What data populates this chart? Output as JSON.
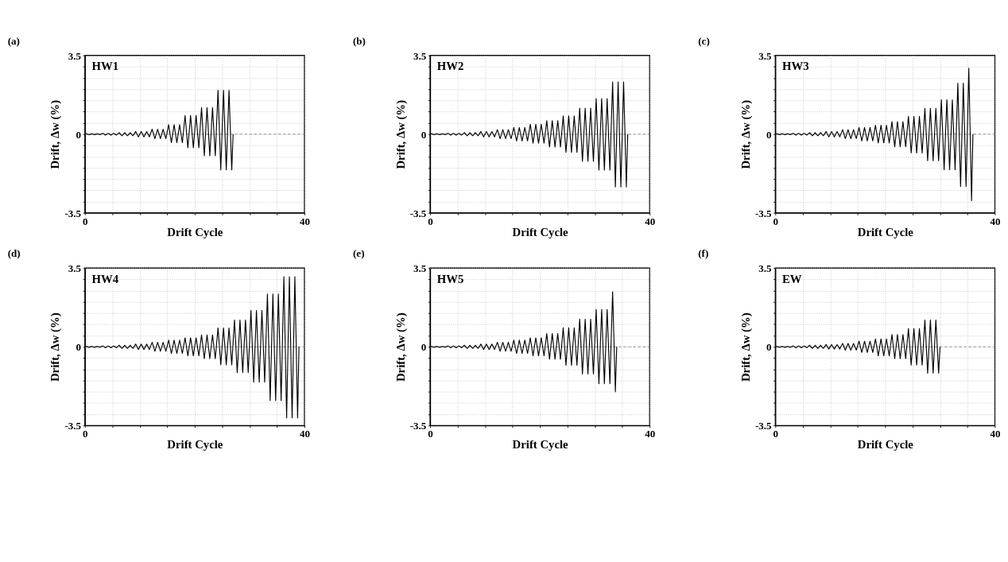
{
  "chart_data": [
    {
      "type": "line",
      "title": "(a)",
      "xlabel": "Drift Cycle",
      "ylabel": "Drift, Δw (%)",
      "annotations": [
        "HW1"
      ],
      "xlim": [
        0,
        40
      ],
      "ylim": [
        -3.5,
        3.5
      ],
      "xticks": [
        0,
        {
          "value": 5,
          "label": null
        },
        {
          "value": 10,
          "label": null
        },
        {
          "value": 15,
          "label": null
        },
        {
          "value": 20,
          "label": null
        },
        {
          "value": 25,
          "label": null
        },
        {
          "value": 30,
          "label": null
        },
        {
          "value": 35,
          "label": null
        },
        40
      ],
      "yticks": [
        -3.5,
        {
          "value": -3,
          "label": null
        },
        {
          "value": -2.5,
          "label": null
        },
        {
          "value": -2,
          "label": null
        },
        {
          "value": -1.5,
          "label": null
        },
        {
          "value": -1,
          "label": null
        },
        {
          "value": -0.5,
          "label": null
        },
        0,
        {
          "value": 0.5,
          "label": null
        },
        {
          "value": 1,
          "label": null
        },
        {
          "value": 1.5,
          "label": null
        },
        {
          "value": 2,
          "label": null
        },
        {
          "value": 2.5,
          "label": null
        },
        {
          "value": 3,
          "label": null
        },
        3.5
      ],
      "grid": true,
      "ref_lines": [
        {
          "axis": "y",
          "value": 0,
          "line_style": "dashed",
          "color": "#888888"
        }
      ],
      "series": [
        {
          "color": "#000000",
          "x": [
            0,
            0.25,
            0.75,
            1.25,
            1.75,
            2.25,
            2.75,
            3.25,
            3.75,
            4.25,
            4.75,
            5.25,
            5.75,
            6.25,
            6.75,
            7.25,
            7.75,
            8.25,
            8.75,
            9.25,
            9.75,
            10.25,
            10.75,
            11.25,
            11.75,
            12.25,
            12.75,
            13.25,
            13.75,
            14.25,
            14.75,
            15.25,
            15.75,
            16.25,
            16.75,
            17.25,
            17.75,
            18.25,
            18.75,
            19.25,
            19.75,
            20.25,
            20.75,
            21.25,
            21.75,
            22.25,
            22.75,
            23.25,
            23.75,
            24.25,
            24.75,
            25.25,
            25.75,
            26.25,
            26.75,
            27
          ],
          "values": [
            0,
            0.02,
            -0.02,
            0.02,
            -0.02,
            0.02,
            -0.02,
            0.04,
            -0.04,
            0.04,
            -0.04,
            0.04,
            -0.04,
            0.07,
            -0.07,
            0.07,
            -0.07,
            0.07,
            -0.07,
            0.12,
            -0.12,
            0.12,
            -0.12,
            0.12,
            -0.12,
            0.22,
            -0.2,
            0.22,
            -0.2,
            0.22,
            -0.2,
            0.42,
            -0.38,
            0.42,
            -0.38,
            0.42,
            -0.38,
            0.83,
            -0.61,
            0.83,
            -0.61,
            0.83,
            -0.61,
            1.18,
            -0.96,
            1.18,
            -0.96,
            1.18,
            -0.96,
            1.95,
            -1.59,
            1.95,
            -1.59,
            1.95,
            -1.59,
            0
          ]
        }
      ]
    },
    {
      "type": "line",
      "title": "(b)",
      "xlabel": "Drift Cycle",
      "ylabel": "Drift, Δw (%)",
      "annotations": [
        "HW2"
      ],
      "xlim": [
        0,
        40
      ],
      "ylim": [
        -3.5,
        3.5
      ],
      "xticks": [
        0,
        {
          "value": 5,
          "label": null
        },
        {
          "value": 10,
          "label": null
        },
        {
          "value": 15,
          "label": null
        },
        {
          "value": 20,
          "label": null
        },
        {
          "value": 25,
          "label": null
        },
        {
          "value": 30,
          "label": null
        },
        {
          "value": 35,
          "label": null
        },
        40
      ],
      "yticks": [
        -3.5,
        {
          "value": -3,
          "label": null
        },
        {
          "value": -2.5,
          "label": null
        },
        {
          "value": -2,
          "label": null
        },
        {
          "value": -1.5,
          "label": null
        },
        {
          "value": -1,
          "label": null
        },
        {
          "value": -0.5,
          "label": null
        },
        0,
        {
          "value": 0.5,
          "label": null
        },
        {
          "value": 1,
          "label": null
        },
        {
          "value": 1.5,
          "label": null
        },
        {
          "value": 2,
          "label": null
        },
        {
          "value": 2.5,
          "label": null
        },
        {
          "value": 3,
          "label": null
        },
        3.5
      ],
      "grid": true,
      "ref_lines": [
        {
          "axis": "y",
          "value": 0,
          "line_style": "dashed",
          "color": "#888888"
        }
      ],
      "series": [
        {
          "color": "#000000",
          "x": [
            0,
            0.25,
            0.75,
            1.25,
            1.75,
            2.25,
            2.75,
            3.25,
            3.75,
            4.25,
            4.75,
            5.25,
            5.75,
            6.25,
            6.75,
            7.25,
            7.75,
            8.25,
            8.75,
            9.25,
            9.75,
            10.25,
            10.75,
            11.25,
            11.75,
            12.25,
            12.75,
            13.25,
            13.75,
            14.25,
            14.75,
            15.25,
            15.75,
            16.25,
            16.75,
            17.25,
            17.75,
            18.25,
            18.75,
            19.25,
            19.75,
            20.25,
            20.75,
            21.25,
            21.75,
            22.25,
            22.75,
            23.25,
            23.75,
            24.25,
            24.75,
            25.25,
            25.75,
            26.25,
            26.75,
            27.25,
            27.75,
            28.25,
            28.75,
            29.25,
            29.75,
            30.25,
            30.75,
            31.25,
            31.75,
            32.25,
            32.75,
            33.25,
            33.75,
            34.25,
            34.75,
            35.25,
            35.75,
            36
          ],
          "values": [
            0,
            0.02,
            -0.02,
            0.02,
            -0.02,
            0.02,
            -0.02,
            0.04,
            -0.04,
            0.04,
            -0.04,
            0.04,
            -0.04,
            0.07,
            -0.07,
            0.07,
            -0.07,
            0.07,
            -0.07,
            0.12,
            -0.12,
            0.12,
            -0.12,
            0.12,
            -0.12,
            0.2,
            -0.2,
            0.2,
            -0.2,
            0.2,
            -0.2,
            0.3,
            -0.3,
            0.3,
            -0.3,
            0.3,
            -0.3,
            0.44,
            -0.4,
            0.44,
            -0.4,
            0.44,
            -0.4,
            0.6,
            -0.57,
            0.6,
            -0.57,
            0.6,
            -0.57,
            0.81,
            -0.81,
            0.81,
            -0.81,
            0.81,
            -0.81,
            1.16,
            -1.21,
            1.16,
            -1.21,
            1.16,
            -1.21,
            1.58,
            -1.6,
            1.58,
            -1.6,
            1.58,
            -1.6,
            2.32,
            -2.35,
            2.32,
            -2.35,
            2.32,
            -2.35,
            0
          ]
        }
      ]
    },
    {
      "type": "line",
      "title": "(c)",
      "xlabel": "Drift Cycle",
      "ylabel": "Drift, Δw (%)",
      "annotations": [
        "HW3"
      ],
      "xlim": [
        0,
        40
      ],
      "ylim": [
        -3.5,
        3.5
      ],
      "xticks": [
        0,
        {
          "value": 5,
          "label": null
        },
        {
          "value": 10,
          "label": null
        },
        {
          "value": 15,
          "label": null
        },
        {
          "value": 20,
          "label": null
        },
        {
          "value": 25,
          "label": null
        },
        {
          "value": 30,
          "label": null
        },
        {
          "value": 35,
          "label": null
        },
        40
      ],
      "yticks": [
        -3.5,
        {
          "value": -3,
          "label": null
        },
        {
          "value": -2.5,
          "label": null
        },
        {
          "value": -2,
          "label": null
        },
        {
          "value": -1.5,
          "label": null
        },
        {
          "value": -1,
          "label": null
        },
        {
          "value": -0.5,
          "label": null
        },
        0,
        {
          "value": 0.5,
          "label": null
        },
        {
          "value": 1,
          "label": null
        },
        {
          "value": 1.5,
          "label": null
        },
        {
          "value": 2,
          "label": null
        },
        {
          "value": 2.5,
          "label": null
        },
        {
          "value": 3,
          "label": null
        },
        3.5
      ],
      "grid": true,
      "ref_lines": [
        {
          "axis": "y",
          "value": 0,
          "line_style": "dashed",
          "color": "#888888"
        }
      ],
      "series": [
        {
          "color": "#000000",
          "x": [
            0,
            0.25,
            0.75,
            1.25,
            1.75,
            2.25,
            2.75,
            3.25,
            3.75,
            4.25,
            4.75,
            5.25,
            5.75,
            6.25,
            6.75,
            7.25,
            7.75,
            8.25,
            8.75,
            9.25,
            9.75,
            10.25,
            10.75,
            11.25,
            11.75,
            12.25,
            12.75,
            13.25,
            13.75,
            14.25,
            14.75,
            15.25,
            15.75,
            16.25,
            16.75,
            17.25,
            17.75,
            18.25,
            18.75,
            19.25,
            19.75,
            20.25,
            20.75,
            21.25,
            21.75,
            22.25,
            22.75,
            23.25,
            23.75,
            24.25,
            24.75,
            25.25,
            25.75,
            26.25,
            26.75,
            27.25,
            27.75,
            28.25,
            28.75,
            29.25,
            29.75,
            30.25,
            30.75,
            31.25,
            31.75,
            32.25,
            32.75,
            33.25,
            33.75,
            34.25,
            34.75,
            35.25,
            35.75,
            36
          ],
          "values": [
            0,
            0.02,
            -0.02,
            0.02,
            -0.02,
            0.02,
            -0.02,
            0.04,
            -0.04,
            0.04,
            -0.04,
            0.04,
            -0.04,
            0.07,
            -0.07,
            0.07,
            -0.07,
            0.07,
            -0.07,
            0.12,
            -0.12,
            0.12,
            -0.12,
            0.12,
            -0.12,
            0.2,
            -0.2,
            0.2,
            -0.2,
            0.2,
            -0.2,
            0.3,
            -0.3,
            0.3,
            -0.3,
            0.3,
            -0.3,
            0.4,
            -0.39,
            0.4,
            -0.39,
            0.4,
            -0.39,
            0.56,
            -0.56,
            0.56,
            -0.56,
            0.56,
            -0.56,
            0.79,
            -0.84,
            0.79,
            -0.84,
            0.79,
            -0.84,
            1.15,
            -1.18,
            1.15,
            -1.18,
            1.15,
            -1.18,
            1.53,
            -1.58,
            1.53,
            -1.58,
            1.53,
            -1.58,
            2.27,
            -2.33,
            2.27,
            -2.33,
            2.93,
            -2.96,
            0
          ]
        }
      ]
    },
    {
      "type": "line",
      "title": "(d)",
      "xlabel": "Drift Cycle",
      "ylabel": "Drift, Δw (%)",
      "annotations": [
        "HW4"
      ],
      "xlim": [
        0,
        40
      ],
      "ylim": [
        -3.5,
        3.5
      ],
      "xticks": [
        0,
        {
          "value": 5,
          "label": null
        },
        {
          "value": 10,
          "label": null
        },
        {
          "value": 15,
          "label": null
        },
        {
          "value": 20,
          "label": null
        },
        {
          "value": 25,
          "label": null
        },
        {
          "value": 30,
          "label": null
        },
        {
          "value": 35,
          "label": null
        },
        40
      ],
      "yticks": [
        -3.5,
        {
          "value": -3,
          "label": null
        },
        {
          "value": -2.5,
          "label": null
        },
        {
          "value": -2,
          "label": null
        },
        {
          "value": -1.5,
          "label": null
        },
        {
          "value": -1,
          "label": null
        },
        {
          "value": -0.5,
          "label": null
        },
        0,
        {
          "value": 0.5,
          "label": null
        },
        {
          "value": 1,
          "label": null
        },
        {
          "value": 1.5,
          "label": null
        },
        {
          "value": 2,
          "label": null
        },
        {
          "value": 2.5,
          "label": null
        },
        {
          "value": 3,
          "label": null
        },
        3.5
      ],
      "grid": true,
      "ref_lines": [
        {
          "axis": "y",
          "value": 0,
          "line_style": "dashed",
          "color": "#888888"
        }
      ],
      "series": [
        {
          "color": "#000000",
          "x": [
            0,
            0.25,
            0.75,
            1.25,
            1.75,
            2.25,
            2.75,
            3.25,
            3.75,
            4.25,
            4.75,
            5.25,
            5.75,
            6.25,
            6.75,
            7.25,
            7.75,
            8.25,
            8.75,
            9.25,
            9.75,
            10.25,
            10.75,
            11.25,
            11.75,
            12.25,
            12.75,
            13.25,
            13.75,
            14.25,
            14.75,
            15.25,
            15.75,
            16.25,
            16.75,
            17.25,
            17.75,
            18.25,
            18.75,
            19.25,
            19.75,
            20.25,
            20.75,
            21.25,
            21.75,
            22.25,
            22.75,
            23.25,
            23.75,
            24.25,
            24.75,
            25.25,
            25.75,
            26.25,
            26.75,
            27.25,
            27.75,
            28.25,
            28.75,
            29.25,
            29.75,
            30.25,
            30.75,
            31.25,
            31.75,
            32.25,
            32.75,
            33.25,
            33.75,
            34.25,
            34.75,
            35.25,
            35.75,
            36.25,
            36.75,
            37.25,
            37.75,
            38.25,
            38.75,
            39
          ],
          "values": [
            0,
            0.02,
            -0.02,
            0.02,
            -0.02,
            0.02,
            -0.02,
            0.04,
            -0.04,
            0.04,
            -0.04,
            0.04,
            -0.04,
            0.07,
            -0.07,
            0.07,
            -0.07,
            0.07,
            -0.07,
            0.12,
            -0.12,
            0.12,
            -0.12,
            0.12,
            -0.12,
            0.2,
            -0.2,
            0.2,
            -0.2,
            0.2,
            -0.2,
            0.3,
            -0.3,
            0.3,
            -0.3,
            0.3,
            -0.3,
            0.4,
            -0.4,
            0.4,
            -0.4,
            0.4,
            -0.4,
            0.53,
            -0.53,
            0.53,
            -0.53,
            0.53,
            -0.53,
            0.84,
            -0.8,
            0.84,
            -0.8,
            0.84,
            -0.8,
            1.19,
            -1.15,
            1.19,
            -1.15,
            1.19,
            -1.15,
            1.62,
            -1.57,
            1.62,
            -1.57,
            1.62,
            -1.57,
            2.35,
            -2.39,
            2.35,
            -2.39,
            2.35,
            -2.39,
            3.12,
            -3.16,
            3.12,
            -3.16,
            3.12,
            -3.16,
            0
          ]
        }
      ]
    },
    {
      "type": "line",
      "title": "(e)",
      "xlabel": "Drift Cycle",
      "ylabel": "Drift, Δw (%)",
      "annotations": [
        "HW5"
      ],
      "xlim": [
        0,
        40
      ],
      "ylim": [
        -3.5,
        3.5
      ],
      "xticks": [
        0,
        {
          "value": 5,
          "label": null
        },
        {
          "value": 10,
          "label": null
        },
        {
          "value": 15,
          "label": null
        },
        {
          "value": 20,
          "label": null
        },
        {
          "value": 25,
          "label": null
        },
        {
          "value": 30,
          "label": null
        },
        {
          "value": 35,
          "label": null
        },
        40
      ],
      "yticks": [
        -3.5,
        {
          "value": -3,
          "label": null
        },
        {
          "value": -2.5,
          "label": null
        },
        {
          "value": -2,
          "label": null
        },
        {
          "value": -1.5,
          "label": null
        },
        {
          "value": -1,
          "label": null
        },
        {
          "value": -0.5,
          "label": null
        },
        0,
        {
          "value": 0.5,
          "label": null
        },
        {
          "value": 1,
          "label": null
        },
        {
          "value": 1.5,
          "label": null
        },
        {
          "value": 2,
          "label": null
        },
        {
          "value": 2.5,
          "label": null
        },
        {
          "value": 3,
          "label": null
        },
        3.5
      ],
      "grid": true,
      "ref_lines": [
        {
          "axis": "y",
          "value": 0,
          "line_style": "dashed",
          "color": "#888888"
        }
      ],
      "series": [
        {
          "color": "#000000",
          "x": [
            0,
            0.25,
            0.75,
            1.25,
            1.75,
            2.25,
            2.75,
            3.25,
            3.75,
            4.25,
            4.75,
            5.25,
            5.75,
            6.25,
            6.75,
            7.25,
            7.75,
            8.25,
            8.75,
            9.25,
            9.75,
            10.25,
            10.75,
            11.25,
            11.75,
            12.25,
            12.75,
            13.25,
            13.75,
            14.25,
            14.75,
            15.25,
            15.75,
            16.25,
            16.75,
            17.25,
            17.75,
            18.25,
            18.75,
            19.25,
            19.75,
            20.25,
            20.75,
            21.25,
            21.75,
            22.25,
            22.75,
            23.25,
            23.75,
            24.25,
            24.75,
            25.25,
            25.75,
            26.25,
            26.75,
            27.25,
            27.75,
            28.25,
            28.75,
            29.25,
            29.75,
            30.25,
            30.75,
            31.25,
            31.75,
            32.25,
            32.75,
            33.25,
            33.75,
            34
          ],
          "values": [
            0,
            0.02,
            -0.02,
            0.02,
            -0.02,
            0.02,
            -0.02,
            0.04,
            -0.04,
            0.04,
            -0.04,
            0.04,
            -0.04,
            0.07,
            -0.07,
            0.07,
            -0.07,
            0.07,
            -0.07,
            0.12,
            -0.12,
            0.12,
            -0.12,
            0.12,
            -0.12,
            0.2,
            -0.2,
            0.2,
            -0.2,
            0.2,
            -0.2,
            0.3,
            -0.3,
            0.3,
            -0.3,
            0.3,
            -0.3,
            0.4,
            -0.4,
            0.4,
            -0.4,
            0.4,
            -0.4,
            0.59,
            -0.55,
            0.59,
            -0.55,
            0.59,
            -0.55,
            0.85,
            -0.82,
            0.85,
            -0.82,
            0.85,
            -0.82,
            1.23,
            -1.21,
            1.23,
            -1.21,
            1.23,
            -1.21,
            1.66,
            -1.64,
            1.66,
            -1.64,
            1.66,
            -1.64,
            2.45,
            -2.0,
            0
          ]
        }
      ]
    },
    {
      "type": "line",
      "title": "(f)",
      "xlabel": "Drift Cycle",
      "ylabel": "Drift, Δw (%)",
      "annotations": [
        "EW"
      ],
      "xlim": [
        0,
        40
      ],
      "ylim": [
        -3.5,
        3.5
      ],
      "xticks": [
        0,
        {
          "value": 5,
          "label": null
        },
        {
          "value": 10,
          "label": null
        },
        {
          "value": 15,
          "label": null
        },
        {
          "value": 20,
          "label": null
        },
        {
          "value": 25,
          "label": null
        },
        {
          "value": 30,
          "label": null
        },
        {
          "value": 35,
          "label": null
        },
        40
      ],
      "yticks": [
        -3.5,
        {
          "value": -3,
          "label": null
        },
        {
          "value": -2.5,
          "label": null
        },
        {
          "value": -2,
          "label": null
        },
        {
          "value": -1.5,
          "label": null
        },
        {
          "value": -1,
          "label": null
        },
        {
          "value": -0.5,
          "label": null
        },
        0,
        {
          "value": 0.5,
          "label": null
        },
        {
          "value": 1,
          "label": null
        },
        {
          "value": 1.5,
          "label": null
        },
        {
          "value": 2,
          "label": null
        },
        {
          "value": 2.5,
          "label": null
        },
        {
          "value": 3,
          "label": null
        },
        3.5
      ],
      "grid": true,
      "ref_lines": [
        {
          "axis": "y",
          "value": 0,
          "line_style": "dashed",
          "color": "#888888"
        }
      ],
      "series": [
        {
          "color": "#000000",
          "x": [
            0,
            0.25,
            0.75,
            1.25,
            1.75,
            2.25,
            2.75,
            3.25,
            3.75,
            4.25,
            4.75,
            5.25,
            5.75,
            6.25,
            6.75,
            7.25,
            7.75,
            8.25,
            8.75,
            9.25,
            9.75,
            10.25,
            10.75,
            11.25,
            11.75,
            12.25,
            12.75,
            13.25,
            13.75,
            14.25,
            14.75,
            15.25,
            15.75,
            16.25,
            16.75,
            17.25,
            17.75,
            18.25,
            18.75,
            19.25,
            19.75,
            20.25,
            20.75,
            21.25,
            21.75,
            22.25,
            22.75,
            23.25,
            23.75,
            24.25,
            24.75,
            25.25,
            25.75,
            26.25,
            26.75,
            27.25,
            27.75,
            28.25,
            28.75,
            29.25,
            29.75,
            30
          ],
          "values": [
            0,
            0.02,
            -0.02,
            0.02,
            -0.02,
            0.02,
            -0.02,
            0.04,
            -0.04,
            0.04,
            -0.04,
            0.04,
            -0.04,
            0.07,
            -0.07,
            0.07,
            -0.07,
            0.07,
            -0.07,
            0.1,
            -0.1,
            0.1,
            -0.1,
            0.1,
            -0.1,
            0.15,
            -0.15,
            0.15,
            -0.15,
            0.15,
            -0.15,
            0.25,
            -0.25,
            0.25,
            -0.25,
            0.25,
            -0.25,
            0.35,
            -0.4,
            0.35,
            -0.4,
            0.35,
            -0.4,
            0.55,
            -0.53,
            0.55,
            -0.53,
            0.55,
            -0.53,
            0.81,
            -0.81,
            0.81,
            -0.81,
            0.81,
            -0.81,
            1.19,
            -1.17,
            1.19,
            -1.17,
            1.19,
            -1.17,
            0
          ]
        }
      ]
    }
  ]
}
